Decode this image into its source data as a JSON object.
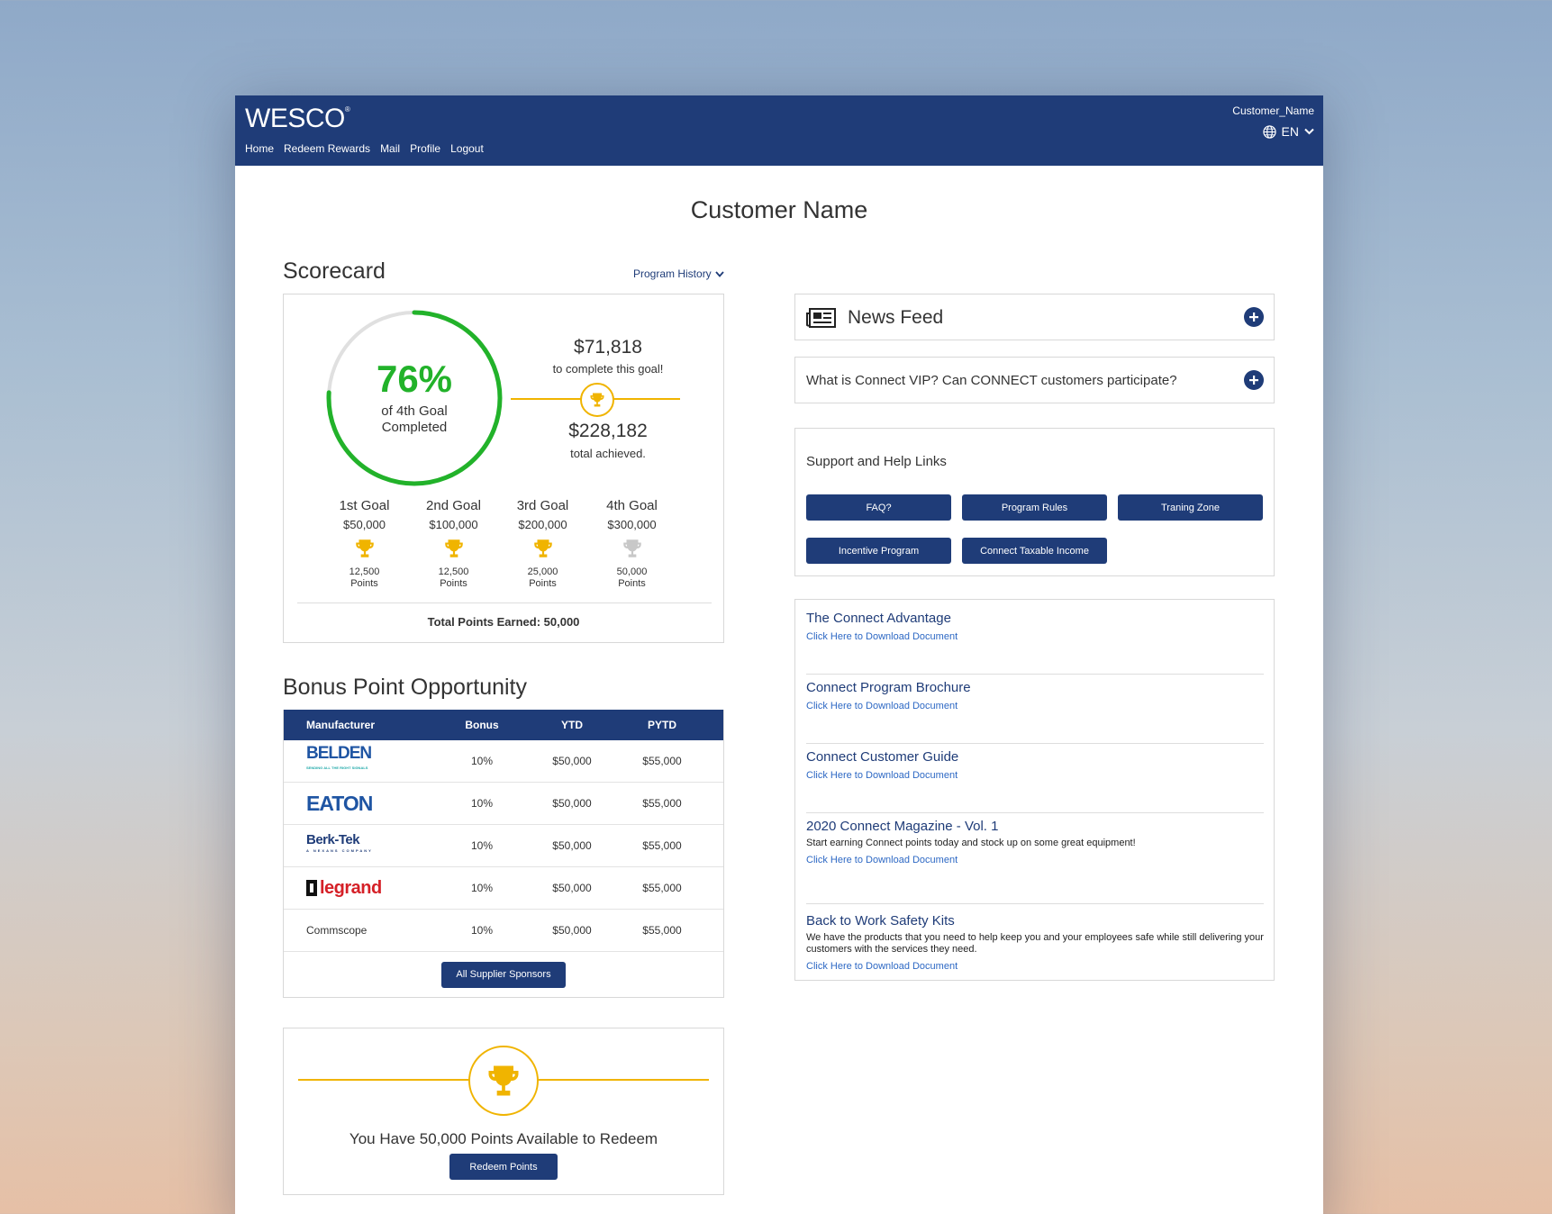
{
  "header": {
    "logo": "WESCO",
    "logo_mark": "®",
    "nav": [
      "Home",
      "Redeem Rewards",
      "Mail",
      "Profile",
      "Logout"
    ],
    "user": "Customer_Name",
    "language": "EN"
  },
  "page_title": "Customer Name",
  "scorecard": {
    "title": "Scorecard",
    "history_link": "Program History",
    "percent": "76%",
    "percent_value": 0.76,
    "percent_label_1": "of 4th Goal",
    "percent_label_2": "Completed",
    "remaining": "$71,818",
    "remaining_label": "to complete this goal!",
    "achieved": "$228,182",
    "achieved_label": "total achieved.",
    "goals": [
      {
        "name": "1st Goal",
        "amount": "$50,000",
        "points": "12,500",
        "unit": "Points",
        "achieved": true
      },
      {
        "name": "2nd Goal",
        "amount": "$100,000",
        "points": "12,500",
        "unit": "Points",
        "achieved": true
      },
      {
        "name": "3rd Goal",
        "amount": "$200,000",
        "points": "25,000",
        "unit": "Points",
        "achieved": true
      },
      {
        "name": "4th Goal",
        "amount": "$300,000",
        "points": "50,000",
        "unit": "Points",
        "achieved": false
      }
    ],
    "total_points": "Total Points Earned: 50,000"
  },
  "bonus": {
    "title": "Bonus Point Opportunity",
    "columns": [
      "Manufacturer",
      "Bonus",
      "YTD",
      "PYTD"
    ],
    "rows": [
      {
        "manufacturer": "BELDEN",
        "tagline": "SENDING ALL THE RIGHT SIGNALS",
        "bonus": "10%",
        "ytd": "$50,000",
        "pytd": "$55,000"
      },
      {
        "manufacturer": "EATON",
        "bonus": "10%",
        "ytd": "$50,000",
        "pytd": "$55,000"
      },
      {
        "manufacturer": "Berk-Tek",
        "tagline": "A NEXANS COMPANY",
        "bonus": "10%",
        "ytd": "$50,000",
        "pytd": "$55,000"
      },
      {
        "manufacturer": "legrand",
        "bonus": "10%",
        "ytd": "$50,000",
        "pytd": "$55,000"
      },
      {
        "manufacturer": "Commscope",
        "bonus": "10%",
        "ytd": "$50,000",
        "pytd": "$55,000"
      }
    ],
    "button": "All Supplier Sponsors"
  },
  "redeem": {
    "text": "You Have 50,000 Points Available to Redeem",
    "button": "Redeem Points"
  },
  "news": {
    "title": "News Feed",
    "faq_question": "What is Connect VIP? Can CONNECT customers participate?"
  },
  "support": {
    "title": "Support and Help Links",
    "buttons": [
      "FAQ?",
      "Program Rules",
      "Traning Zone",
      "Incentive Program",
      "Connect Taxable Income"
    ]
  },
  "documents": [
    {
      "title": "The Connect Advantage",
      "description": "",
      "link": "Click Here to Download Document"
    },
    {
      "title": "Connect Program Brochure",
      "description": "",
      "link": "Click Here to Download Document"
    },
    {
      "title": "Connect Customer Guide",
      "description": "",
      "link": "Click Here to Download Document"
    },
    {
      "title": "2020 Connect Magazine - Vol. 1",
      "description": "Start earning Connect points today and stock up on some great equipment!",
      "link": "Click Here to Download Document"
    },
    {
      "title": "Back to Work Safety Kits",
      "description": "We have the products that you need to help keep you and your employees safe while still delivering your customers with the services they need.",
      "link": "Click Here to Download Document"
    }
  ],
  "colors": {
    "brand_navy": "#1f3c78",
    "progress_green": "#22b22a",
    "trophy_gold": "#f0b400",
    "trophy_gray": "#c8c8c8",
    "link_blue": "#2d68c4"
  }
}
